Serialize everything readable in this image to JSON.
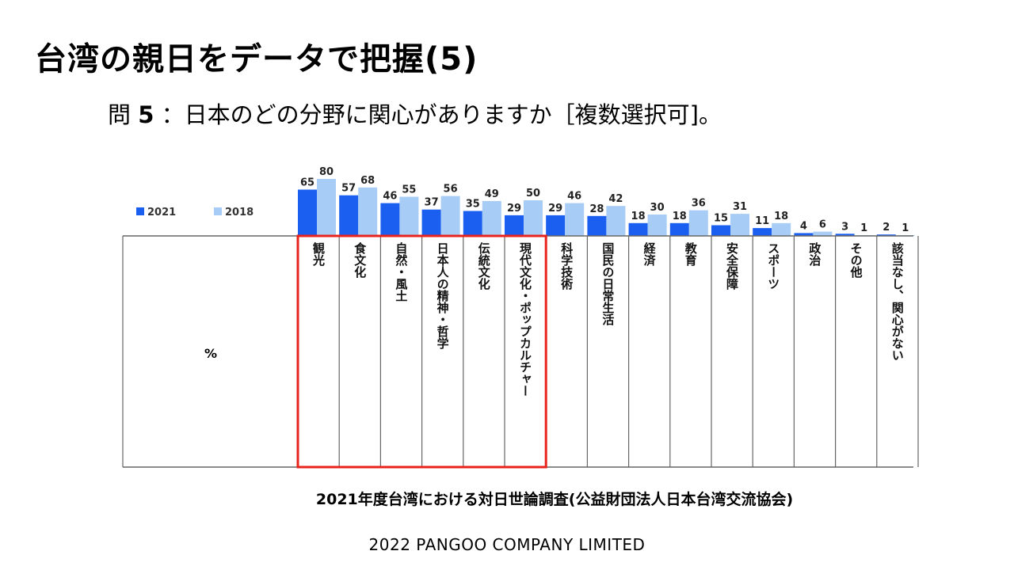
{
  "slide": {
    "title": "台湾の親日をデータで把握(5)",
    "question_prefix": "問",
    "question_number": "5",
    "question_text": "：日本のどの分野に関心がありますか［複数選択可]。",
    "source": "2021年度台湾における対日世論調査(公益財団法人日本台湾交流協会)",
    "footer": "2022 PANGOO COMPANY LIMITED"
  },
  "chart_data": {
    "type": "bar",
    "unit_label": "%",
    "legend_position": "top-left",
    "grid": false,
    "categories": [
      "観光",
      "食文化",
      "自然・風土",
      "日本人の精神・哲学",
      "伝統文化",
      "現代文化・ポップカルチャー",
      "科学技術",
      "国民の日常生活",
      "経済",
      "教育",
      "安全保障",
      "スポーツ",
      "政治",
      "その他",
      "該当なし、関心がない"
    ],
    "series": [
      {
        "name": "2021",
        "color": "#1a5ff0",
        "values": [
          65,
          57,
          46,
          37,
          35,
          29,
          29,
          28,
          18,
          18,
          15,
          11,
          4,
          3,
          2
        ]
      },
      {
        "name": "2018",
        "color": "#a7ccf5",
        "values": [
          80,
          68,
          55,
          56,
          49,
          50,
          46,
          42,
          30,
          36,
          31,
          18,
          6,
          1,
          1
        ]
      }
    ],
    "highlighted_categories": [
      0,
      5
    ],
    "highlight_color": "#e8231c",
    "ylim": [
      0,
      100
    ]
  }
}
